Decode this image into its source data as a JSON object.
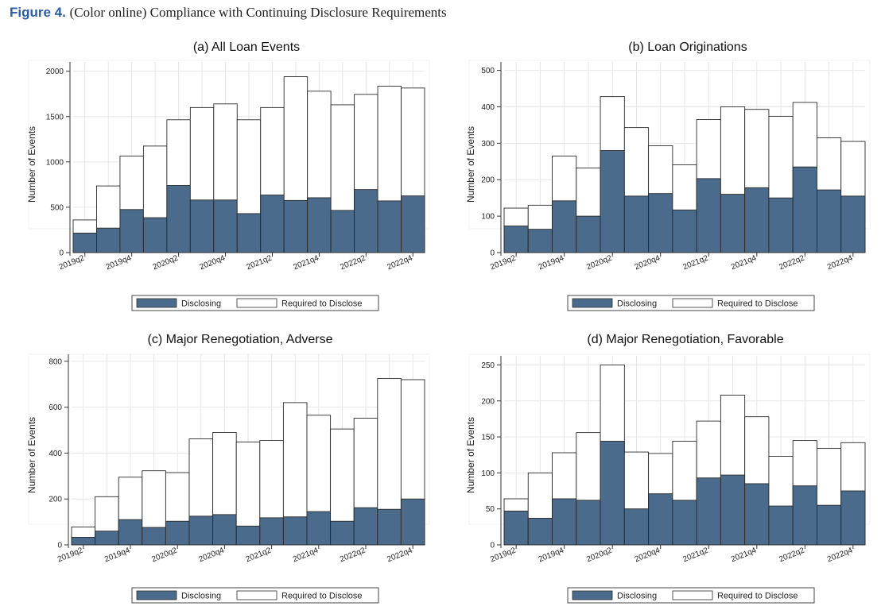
{
  "figure": {
    "label": "Figure 4.",
    "caption": "(Color online) Compliance with Continuing Disclosure Requirements"
  },
  "colors": {
    "disclosing": "#4a6b8c",
    "required": "#ffffff",
    "edge": "#2b2b2b",
    "grid": "#e6e6e6",
    "ring": "#f0f0f0"
  },
  "chart_data": [
    {
      "type": "bar",
      "stacked": "overlay",
      "title": "(a) All Loan Events",
      "xlabel": "",
      "ylabel": "Number of Events",
      "ylim": [
        0,
        2050
      ],
      "yticks": [
        0,
        500,
        1000,
        1500,
        2000
      ],
      "categories": [
        "2019q2",
        "2019q3",
        "2019q4",
        "2020q1",
        "2020q2",
        "2020q3",
        "2020q4",
        "2021q1",
        "2021q2",
        "2021q3",
        "2021q4",
        "2022q1",
        "2022q2",
        "2022q3",
        "2022q4"
      ],
      "xtick_labels": [
        "2019q2",
        "2019q4",
        "2020q2",
        "2020q4",
        "2021q2",
        "2021q4",
        "2022q2",
        "2022q4"
      ],
      "series": [
        {
          "name": "Required to Disclose",
          "values": [
            360,
            735,
            1065,
            1175,
            1465,
            1600,
            1640,
            1465,
            1600,
            1940,
            1780,
            1630,
            1745,
            1835,
            1815
          ]
        },
        {
          "name": "Disclosing",
          "values": [
            215,
            270,
            475,
            385,
            740,
            580,
            580,
            430,
            635,
            575,
            605,
            465,
            695,
            570,
            625
          ]
        }
      ],
      "legend": [
        "Disclosing",
        "Required to Disclose"
      ]
    },
    {
      "type": "bar",
      "stacked": "overlay",
      "title": "(b) Loan Originations",
      "xlabel": "",
      "ylabel": "Number of Events",
      "ylim": [
        0,
        510
      ],
      "yticks": [
        0,
        100,
        200,
        300,
        400,
        500
      ],
      "categories": [
        "2019q2",
        "2019q3",
        "2019q4",
        "2020q1",
        "2020q2",
        "2020q3",
        "2020q4",
        "2021q1",
        "2021q2",
        "2021q3",
        "2021q4",
        "2022q1",
        "2022q2",
        "2022q3",
        "2022q4"
      ],
      "xtick_labels": [
        "2019q2",
        "2019q4",
        "2020q2",
        "2020q4",
        "2021q2",
        "2021q4",
        "2022q2",
        "2022q4"
      ],
      "series": [
        {
          "name": "Required to Disclose",
          "values": [
            122,
            130,
            265,
            232,
            428,
            343,
            293,
            241,
            365,
            400,
            393,
            374,
            412,
            315,
            305
          ]
        },
        {
          "name": "Disclosing",
          "values": [
            73,
            64,
            142,
            100,
            280,
            155,
            162,
            117,
            203,
            160,
            178,
            150,
            235,
            172,
            155
          ]
        }
      ],
      "legend": [
        "Disclosing",
        "Required to Disclose"
      ]
    },
    {
      "type": "bar",
      "stacked": "overlay",
      "title": "(c) Major Renegotiation, Adverse",
      "xlabel": "",
      "ylabel": "Number of Events",
      "ylim": [
        0,
        810
      ],
      "yticks": [
        0,
        200,
        400,
        600,
        800
      ],
      "categories": [
        "2019q2",
        "2019q3",
        "2019q4",
        "2020q1",
        "2020q2",
        "2020q3",
        "2020q4",
        "2021q1",
        "2021q2",
        "2021q3",
        "2021q4",
        "2022q1",
        "2022q2",
        "2022q3",
        "2022q4"
      ],
      "xtick_labels": [
        "2019q2",
        "2019q4",
        "2020q2",
        "2020q4",
        "2021q2",
        "2021q4",
        "2022q2",
        "2022q4"
      ],
      "series": [
        {
          "name": "Required to Disclose",
          "values": [
            78,
            210,
            295,
            323,
            315,
            462,
            490,
            448,
            455,
            620,
            565,
            505,
            552,
            725,
            720
          ]
        },
        {
          "name": "Disclosing",
          "values": [
            33,
            60,
            110,
            76,
            103,
            125,
            132,
            82,
            118,
            122,
            145,
            103,
            162,
            155,
            200
          ]
        }
      ],
      "legend": [
        "Disclosing",
        "Required to Disclose"
      ]
    },
    {
      "type": "bar",
      "stacked": "overlay",
      "title": "(d) Major Renegotiation, Favorable",
      "xlabel": "",
      "ylabel": "Number of Events",
      "ylim": [
        0,
        256
      ],
      "yticks": [
        0,
        50,
        100,
        150,
        200,
        250
      ],
      "categories": [
        "2019q2",
        "2019q3",
        "2019q4",
        "2020q1",
        "2020q2",
        "2020q3",
        "2020q4",
        "2021q1",
        "2021q2",
        "2021q3",
        "2021q4",
        "2022q1",
        "2022q2",
        "2022q3",
        "2022q4"
      ],
      "xtick_labels": [
        "2019q2",
        "2019q4",
        "2020q2",
        "2020q4",
        "2021q2",
        "2021q4",
        "2022q2",
        "2022q4"
      ],
      "series": [
        {
          "name": "Required to Disclose",
          "values": [
            64,
            100,
            128,
            156,
            250,
            129,
            127,
            144,
            172,
            208,
            178,
            123,
            145,
            134,
            142
          ]
        },
        {
          "name": "Disclosing",
          "values": [
            47,
            37,
            64,
            62,
            144,
            50,
            71,
            62,
            93,
            97,
            85,
            54,
            82,
            55,
            75
          ]
        }
      ],
      "legend": [
        "Disclosing",
        "Required to Disclose"
      ]
    }
  ]
}
